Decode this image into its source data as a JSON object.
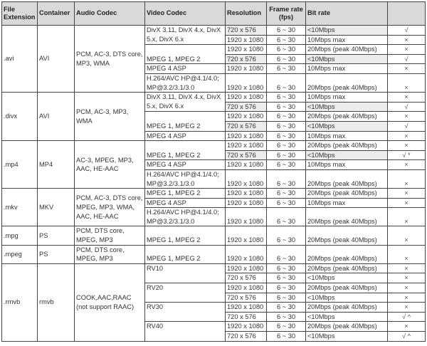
{
  "headers": [
    "File Extension",
    "Container",
    "Audio Codec",
    "Video Codec",
    "Resolution",
    "Frame rate (fps)",
    "Bit rate",
    ""
  ],
  "groups": [
    {
      "ext": ".avi",
      "container": "AVI",
      "audio": "PCM, AC-3, DTS core, MP3, WMA",
      "codecs": [
        {
          "name": "DivX 3.11, DivX  4.x, DivX 5.x, DivX 6.x",
          "align": "top",
          "rows": [
            {
              "res": "720 x 576",
              "fps": "6 ~ 30",
              "bitrate": "<10Mbps",
              "support": "√",
              "shade": true
            },
            {
              "res": "1920 x 1080",
              "fps": "6 ~ 30",
              "bitrate": "10Mbps max",
              "support": "×"
            }
          ]
        },
        {
          "name": "MPEG 1, MPEG 2",
          "align": "bot",
          "rows": [
            {
              "res": "1920 x 1080",
              "fps": "6 ~ 30",
              "bitrate": "20Mbps (peak 40Mbps)",
              "support": "×"
            },
            {
              "res": "720 x 576",
              "fps": "6 ~ 30",
              "bitrate": "<10Mbps",
              "support": "√",
              "shade": true
            }
          ]
        },
        {
          "name": "MPEG 4 ASP",
          "align": "top",
          "rows": [
            {
              "res": "1920 x 1080",
              "fps": "6 ~ 30",
              "bitrate": "10Mbps max",
              "support": "×"
            }
          ]
        },
        {
          "name": "H.264/AVC HP@4.1/4.0; MP@3.2/3.1/3.0",
          "align": "top",
          "double": true,
          "rows": [
            {
              "res": "1920 x 1080",
              "fps": "6 ~ 30",
              "bitrate": "20Mbps (peak 40Mbps)",
              "support": "×"
            }
          ]
        }
      ]
    },
    {
      "ext": ".divx",
      "container": "AVI",
      "audio": "PCM, AC-3, MP3, WMA",
      "codecs": [
        {
          "name": "DivX 3.11, DivX  4.x, DivX 5.x, DivX 6.x",
          "align": "top",
          "rows": [
            {
              "res": "1920 x 1080",
              "fps": "6 ~ 30",
              "bitrate": "10Mbps max",
              "support": "×"
            },
            {
              "res": "720 x 576",
              "fps": "6 ~ 30",
              "bitrate": "<10Mbps",
              "support": "√",
              "shade": true
            }
          ]
        },
        {
          "name": "MPEG 1, MPEG 2",
          "align": "bot",
          "rows": [
            {
              "res": "1920 x 1080",
              "fps": "6 ~ 30",
              "bitrate": "20Mbps (peak 40Mbps)",
              "support": "×"
            },
            {
              "res": "720 x 576",
              "fps": "6 ~ 30",
              "bitrate": "<10Mbps",
              "support": "√",
              "shade": true
            }
          ]
        },
        {
          "name": "MPEG 4 ASP",
          "align": "top",
          "rows": [
            {
              "res": "1920 x 1080",
              "fps": "6 ~ 30",
              "bitrate": "10Mbps max",
              "support": "×"
            }
          ]
        }
      ]
    },
    {
      "ext": ".mp4",
      "container": "MP4",
      "audio": "AC-3, MPEG, MP3, AAC, HE-AAC",
      "codecs": [
        {
          "name": "MPEG 1, MPEG 2",
          "align": "bot",
          "rows": [
            {
              "res": "1920 x 1080",
              "fps": "6 ~ 30",
              "bitrate": "20Mbps (peak 40Mbps)",
              "support": "×"
            },
            {
              "res": "720 x 576",
              "fps": "6 ~ 30",
              "bitrate": "<10Mbps",
              "support": "√ *",
              "shade": true
            }
          ]
        },
        {
          "name": "MPEG 4 ASP",
          "align": "top",
          "rows": [
            {
              "res": "1920 x 1080",
              "fps": "6 ~ 30",
              "bitrate": "10Mbps max",
              "support": "×"
            }
          ]
        },
        {
          "name": "H.264/AVC HP@4.1/4.0; MP@3.2/3.1/3.0",
          "align": "top",
          "double": true,
          "rows": [
            {
              "res": "1920 x 1080",
              "fps": "6 ~ 30",
              "bitrate": "20Mbps (peak 40Mbps)",
              "support": "×"
            }
          ]
        }
      ]
    },
    {
      "ext": ".mkv",
      "container": "MKV",
      "audio": "PCM, AC-3, DTS core, MPEG, MP3, WMA, AAC, HE-AAC",
      "codecs": [
        {
          "name": "MPEG 1, MPEG 2",
          "align": "top",
          "rows": [
            {
              "res": "1920 x 1080",
              "fps": "6 ~ 30",
              "bitrate": "20Mbps (peak 40Mbps)",
              "support": "×"
            }
          ]
        },
        {
          "name": "MPEG 4 ASP",
          "align": "top",
          "rows": [
            {
              "res": "1920 x 1080",
              "fps": "6 ~ 30",
              "bitrate": "10Mbps max",
              "support": "×"
            }
          ]
        },
        {
          "name": "H.264/AVC HP@4.1/4.0; MP@3.2/3.1/3.0",
          "align": "top",
          "double": true,
          "rows": [
            {
              "res": "1920 x 1080",
              "fps": "6 ~ 30",
              "bitrate": "20Mbps (peak 40Mbps)",
              "support": "×"
            }
          ]
        }
      ]
    },
    {
      "ext": ".mpg",
      "container": "PS",
      "audio": "PCM, DTS core, MPEG, MP3",
      "codecs": [
        {
          "name": "MPEG 1, MPEG 2",
          "align": "bot",
          "double": true,
          "rows": [
            {
              "res": "1920 x 1080",
              "fps": "6 ~ 30",
              "bitrate": "20Mbps (peak 40Mbps)",
              "support": "×"
            }
          ]
        }
      ]
    },
    {
      "ext": ".mpeg",
      "container": "PS",
      "audio": "PCM, DTS core, MPEG, MP3",
      "codecs": [
        {
          "name": "MPEG 1, MPEG 2",
          "align": "bot",
          "double": true,
          "rows": [
            {
              "res": "1920 x 1080",
              "fps": "6 ~ 30",
              "bitrate": "20Mbps (peak 40Mbps)",
              "support": "×"
            }
          ]
        }
      ]
    },
    {
      "ext": ".rmvb",
      "container": "rmvb",
      "audio": "COOK,AAC,RAAC (not support RAAC)",
      "codecs": [
        {
          "name": "RV10",
          "align": "top",
          "rows": [
            {
              "res": "1920 x 1080",
              "fps": "6 ~ 30",
              "bitrate": "20Mbps (peak 40Mbps)",
              "support": "×"
            },
            {
              "res": "720 x 576",
              "fps": "6 ~ 30",
              "bitrate": "<10Mbps",
              "support": "×"
            }
          ]
        },
        {
          "name": "RV20",
          "align": "top",
          "rows": [
            {
              "res": "1920 x 1080",
              "fps": "6 ~ 30",
              "bitrate": "20Mbps (peak 40Mbps)",
              "support": "×"
            },
            {
              "res": "720 x 576",
              "fps": "6 ~ 30",
              "bitrate": "<10Mbps",
              "support": "×"
            }
          ]
        },
        {
          "name": "RV30",
          "align": "top",
          "rows": [
            {
              "res": "1920 x 1080",
              "fps": "6 ~ 30",
              "bitrate": "20Mbps (peak 40Mbps)",
              "support": "×"
            },
            {
              "res": "720 x 576",
              "fps": "6 ~ 30",
              "bitrate": "<10Mbps",
              "support": "√ ^"
            }
          ]
        },
        {
          "name": "RV40",
          "align": "top",
          "rows": [
            {
              "res": "1920 x 1080",
              "fps": "6 ~ 30",
              "bitrate": "20Mbps (peak 40Mbps)",
              "support": "×"
            },
            {
              "res": "720 x 576",
              "fps": "6 ~ 30",
              "bitrate": "<10Mbps",
              "support": "√ ^"
            }
          ]
        }
      ]
    }
  ]
}
